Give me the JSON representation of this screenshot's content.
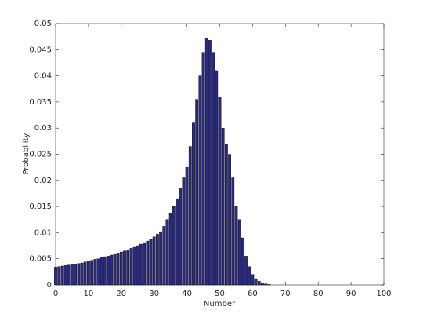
{
  "chart_data": {
    "type": "bar",
    "x": [
      0,
      1,
      2,
      3,
      4,
      5,
      6,
      7,
      8,
      9,
      10,
      11,
      12,
      13,
      14,
      15,
      16,
      17,
      18,
      19,
      20,
      21,
      22,
      23,
      24,
      25,
      26,
      27,
      28,
      29,
      30,
      31,
      32,
      33,
      34,
      35,
      36,
      37,
      38,
      39,
      40,
      41,
      42,
      43,
      44,
      45,
      46,
      47,
      48,
      49,
      50,
      51,
      52,
      53,
      54,
      55,
      56,
      57,
      58,
      59,
      60,
      61,
      62,
      63,
      64,
      65,
      66,
      67,
      68,
      69,
      70
    ],
    "values": [
      0.0034,
      0.0035,
      0.0036,
      0.0037,
      0.0038,
      0.0039,
      0.004,
      0.0041,
      0.0042,
      0.0044,
      0.0046,
      0.0047,
      0.0049,
      0.005,
      0.0052,
      0.0054,
      0.0055,
      0.0057,
      0.0059,
      0.0061,
      0.0063,
      0.0065,
      0.0067,
      0.007,
      0.0072,
      0.0075,
      0.0078,
      0.0081,
      0.0084,
      0.0088,
      0.0092,
      0.0097,
      0.0102,
      0.0112,
      0.0125,
      0.0137,
      0.015,
      0.0165,
      0.0185,
      0.0205,
      0.0225,
      0.0265,
      0.031,
      0.0355,
      0.04,
      0.0445,
      0.0472,
      0.0468,
      0.0445,
      0.041,
      0.036,
      0.03,
      0.027,
      0.025,
      0.0205,
      0.015,
      0.0125,
      0.009,
      0.0055,
      0.0035,
      0.002,
      0.0012,
      0.0007,
      0.0004,
      0.0002,
      0.0001,
      0,
      0,
      0,
      0,
      0
    ],
    "color": "#2b2a7e",
    "xlabel": "Number",
    "ylabel": "Probability",
    "xlim": [
      0,
      100
    ],
    "xticks": [
      0,
      10,
      20,
      30,
      40,
      50,
      60,
      70,
      80,
      90,
      100
    ],
    "ylim": [
      0,
      0.05
    ],
    "yticks": [
      0,
      0.005,
      0.01,
      0.015,
      0.02,
      0.025,
      0.03,
      0.035,
      0.04,
      0.045,
      0.05
    ]
  }
}
